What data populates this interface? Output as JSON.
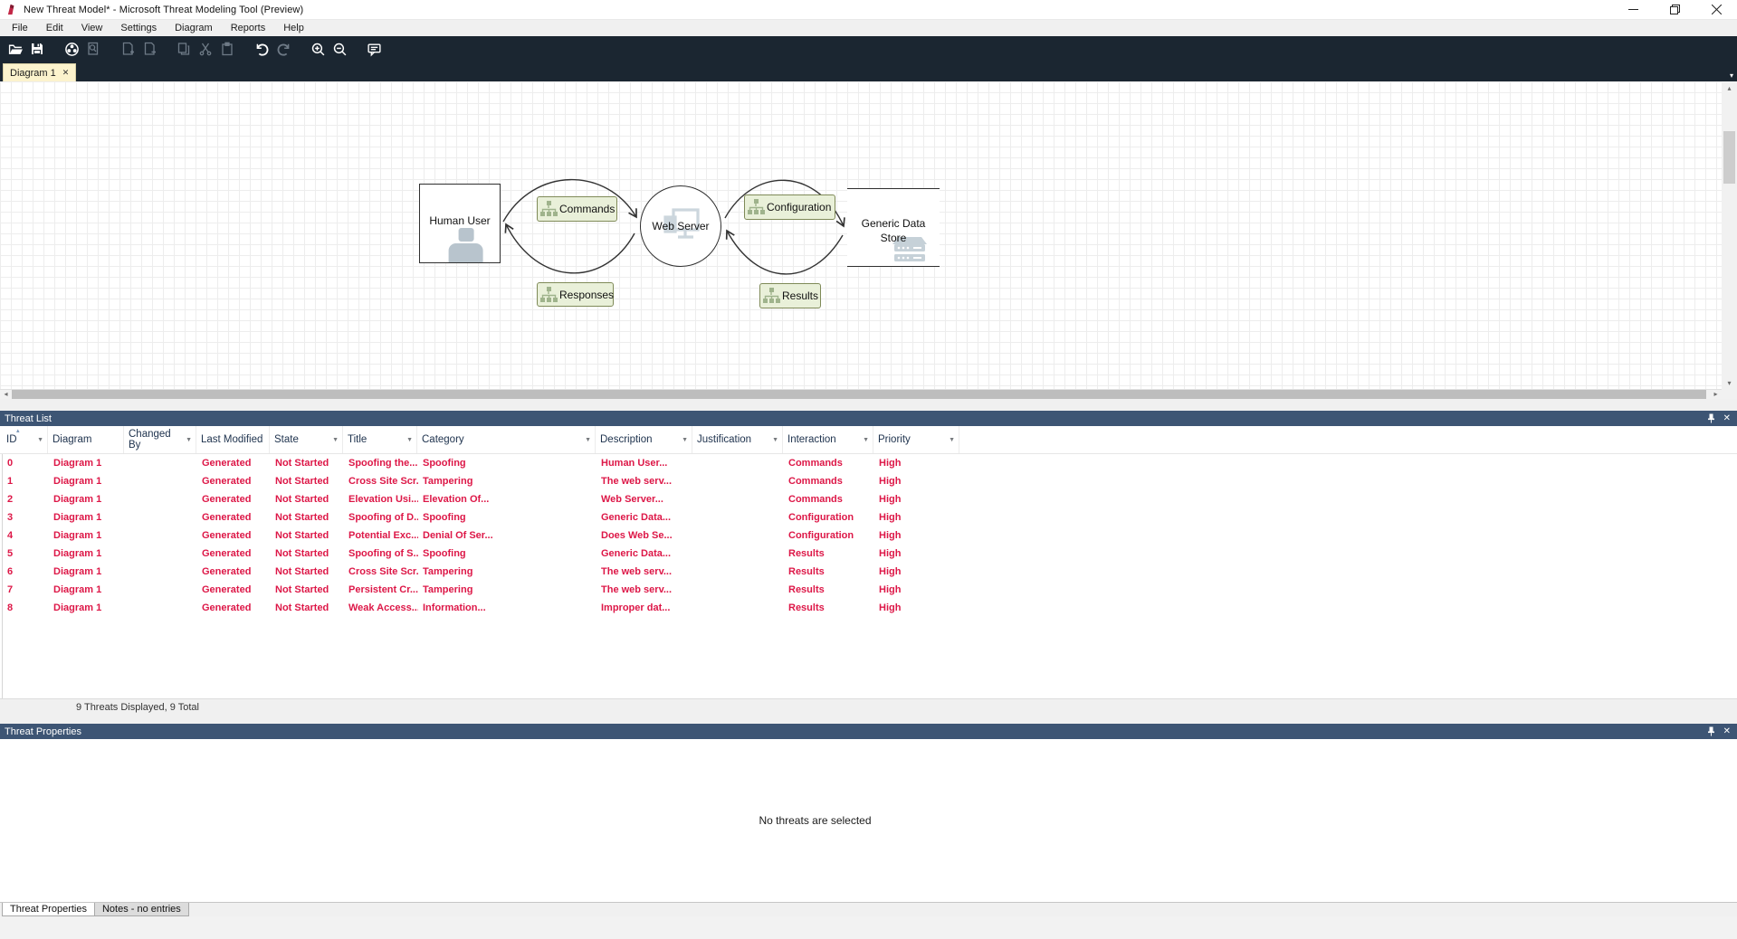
{
  "window": {
    "title": "New Threat Model* - Microsoft Threat Modeling Tool  (Preview)",
    "control_icons": [
      "minimize",
      "restore",
      "close"
    ]
  },
  "menu": {
    "items": [
      "File",
      "Edit",
      "View",
      "Settings",
      "Diagram",
      "Reports",
      "Help"
    ]
  },
  "toolbar": {
    "icon_names": [
      "open",
      "save",
      "analysis-view",
      "find",
      "add-diagram",
      "remove-diagram",
      "copy",
      "cut",
      "paste",
      "undo",
      "redo",
      "zoom-in",
      "zoom-out",
      "feedback"
    ]
  },
  "diagram_tabs": {
    "active": "Diagram 1"
  },
  "canvas": {
    "nodes": [
      {
        "id": "human-user",
        "label": "Human User",
        "shape": "rectangle"
      },
      {
        "id": "web-server",
        "label": "Web Server",
        "shape": "circle"
      },
      {
        "id": "generic-data-store",
        "label": "Generic Data Store",
        "shape": "parallel-lines"
      }
    ],
    "flows": [
      {
        "label": "Commands"
      },
      {
        "label": "Responses"
      },
      {
        "label": "Configuration"
      },
      {
        "label": "Results"
      }
    ]
  },
  "threat_list": {
    "title": "Threat List",
    "header_icons": [
      "pin",
      "close"
    ],
    "columns": [
      "ID",
      "Diagram",
      "Changed By",
      "Last Modified",
      "State",
      "Title",
      "Category",
      "Description",
      "Justification",
      "Interaction",
      "Priority"
    ],
    "rows": [
      [
        "0",
        "Diagram 1",
        "",
        "Generated",
        "Not Started",
        "Spoofing the...",
        "Spoofing",
        "Human User...",
        "",
        "Commands",
        "High"
      ],
      [
        "1",
        "Diagram 1",
        "",
        "Generated",
        "Not Started",
        "Cross Site Scr...",
        "Tampering",
        "The web serv...",
        "",
        "Commands",
        "High"
      ],
      [
        "2",
        "Diagram 1",
        "",
        "Generated",
        "Not Started",
        "Elevation Usi...",
        "Elevation Of...",
        "Web Server...",
        "",
        "Commands",
        "High"
      ],
      [
        "3",
        "Diagram 1",
        "",
        "Generated",
        "Not Started",
        "Spoofing of D...",
        "Spoofing",
        "Generic Data...",
        "",
        "Configuration",
        "High"
      ],
      [
        "4",
        "Diagram 1",
        "",
        "Generated",
        "Not Started",
        "Potential Exc...",
        "Denial Of Ser...",
        "Does Web Se...",
        "",
        "Configuration",
        "High"
      ],
      [
        "5",
        "Diagram 1",
        "",
        "Generated",
        "Not Started",
        "Spoofing of S...",
        "Spoofing",
        "Generic Data...",
        "",
        "Results",
        "High"
      ],
      [
        "6",
        "Diagram 1",
        "",
        "Generated",
        "Not Started",
        "Cross Site Scr...",
        "Tampering",
        "The web serv...",
        "",
        "Results",
        "High"
      ],
      [
        "7",
        "Diagram 1",
        "",
        "Generated",
        "Not Started",
        "Persistent Cr...",
        "Tampering",
        "The web serv...",
        "",
        "Results",
        "High"
      ],
      [
        "8",
        "Diagram 1",
        "",
        "Generated",
        "Not Started",
        "Weak Access...",
        "Information...",
        "Improper dat...",
        "",
        "Results",
        "High"
      ]
    ],
    "status": "9 Threats Displayed, 9 Total"
  },
  "threat_properties": {
    "title": "Threat Properties",
    "header_icons": [
      "pin",
      "close"
    ],
    "empty_message": "No threats are selected",
    "tabs": [
      "Threat Properties",
      "Notes - no entries"
    ]
  }
}
